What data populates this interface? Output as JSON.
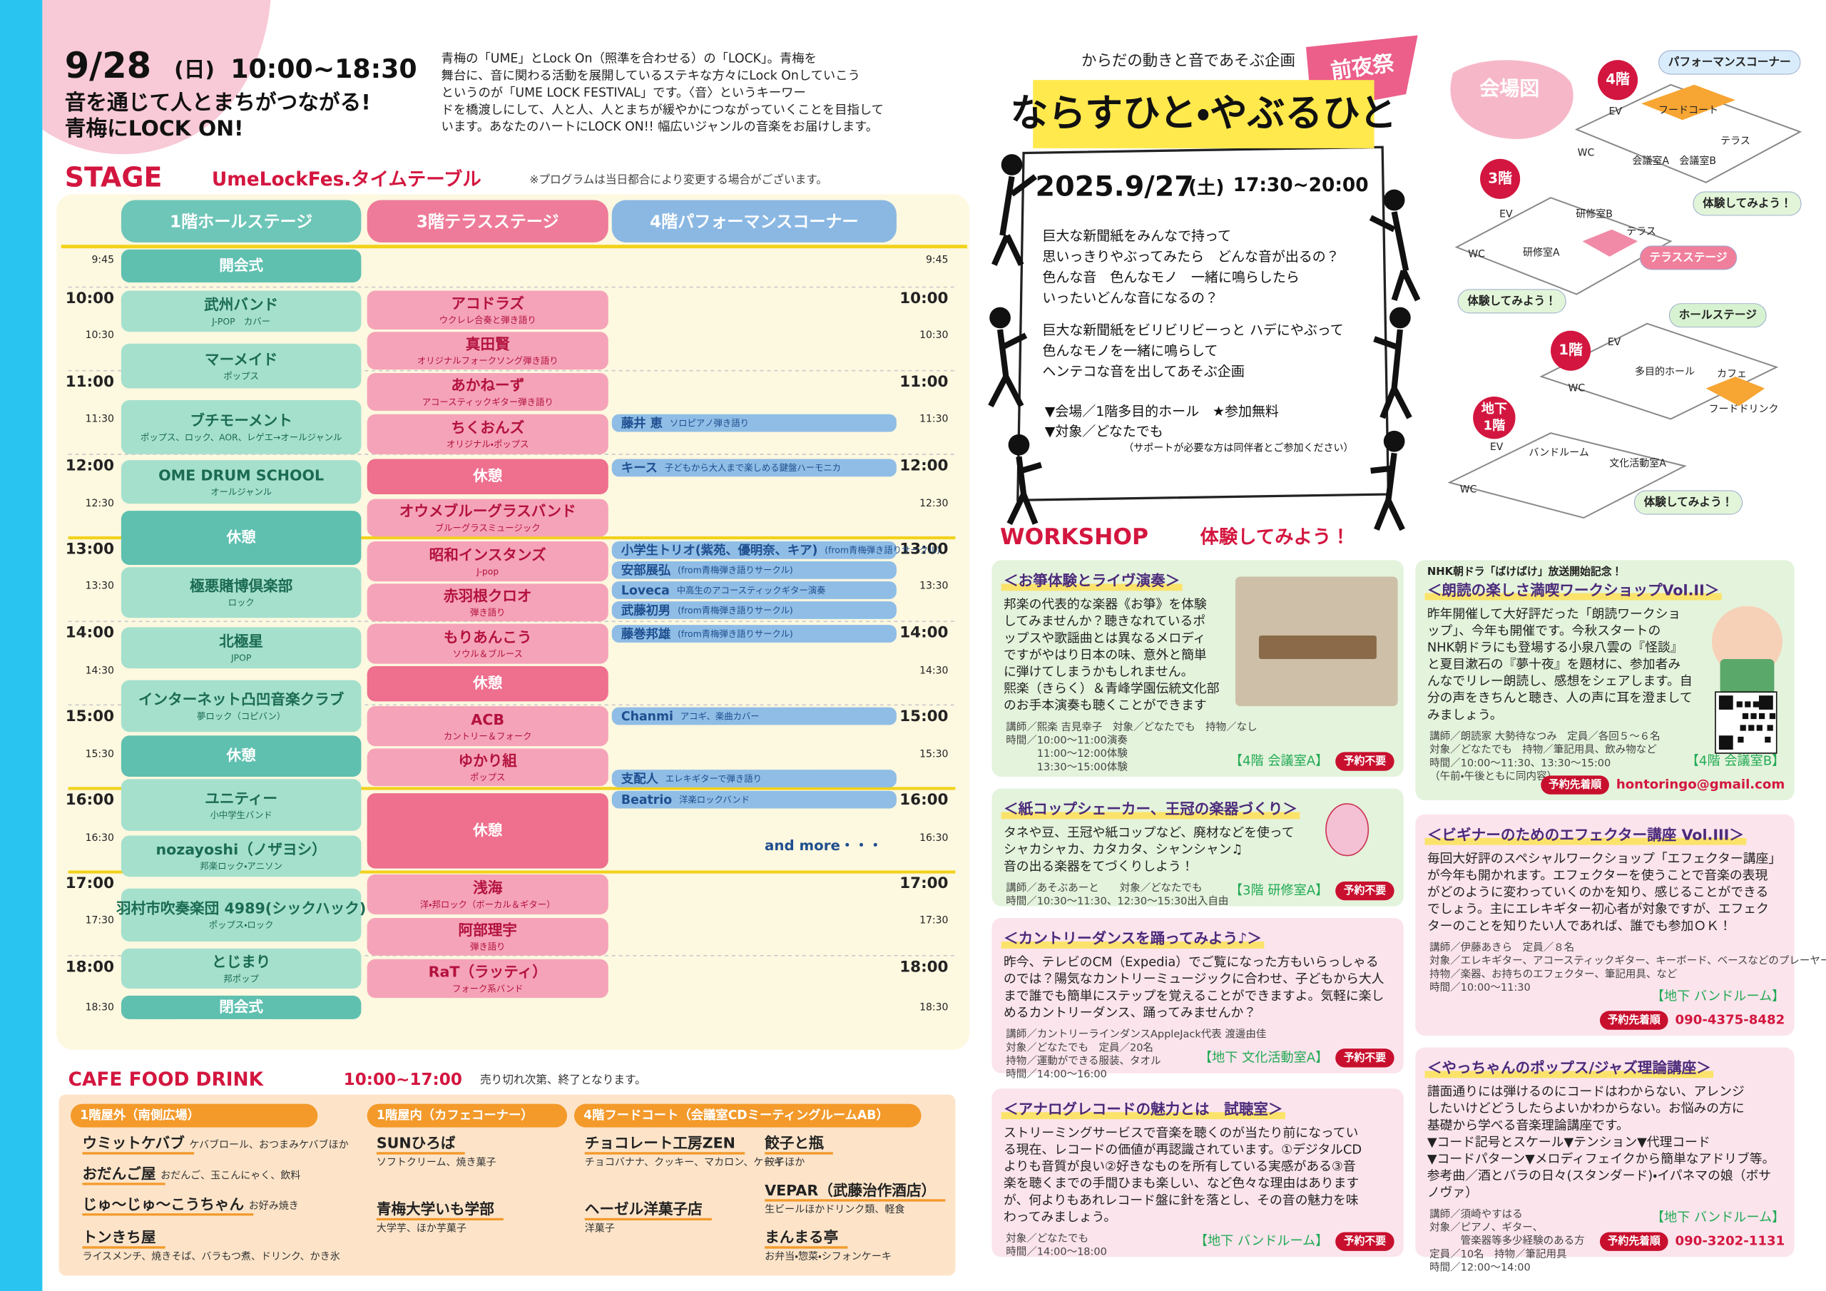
{
  "header": {
    "date": "9/28",
    "day": "(日)",
    "time": "10:00~18:30",
    "tagline": [
      "音を通じて人とまちがつながる!",
      "青梅にLOCK ON!"
    ],
    "intro": [
      "青梅の「UME」とLock On（照準を合わせる）の「LOCK」。青梅を",
      "舞台に、音に関わる活動を展開しているステキな方々にLock Onしていこう",
      "というのが「UME LOCK FESTIVAL」です。〈音〉というキーワー",
      "ドを橋渡しにして、人と人、人とまちが緩やかにつながっていくことを目指して",
      "います。あなたのハートにLOCK ON!! 幅広いジャンルの音楽をお届けします。"
    ]
  },
  "stage": {
    "title": "STAGE",
    "subtitle": "UmeLockFes.タイムテーブル",
    "note": "※プログラムは当日都合により変更する場合がございます。",
    "columns": [
      "1階ホールステージ",
      "3階テラスステージ",
      "4階パフォーマンスコーナー"
    ],
    "times": [
      "9:45",
      "10:00",
      "10:30",
      "11:00",
      "11:30",
      "12:00",
      "12:30",
      "13:00",
      "13:30",
      "14:00",
      "14:30",
      "15:00",
      "15:30",
      "16:00",
      "16:30",
      "17:00",
      "17:30",
      "18:00",
      "18:30"
    ],
    "hall": [
      {
        "name": "開会式"
      },
      {
        "name": "武州バンド",
        "sub": "J-POP　カバー"
      },
      {
        "name": "マーメイド",
        "sub": "ポップス"
      },
      {
        "name": "ブチモーメント",
        "sub": "ポップス、ロック、AOR、レゲエ→オールジャンル"
      },
      {
        "name": "OME DRUM SCHOOL",
        "sub": "オールジャンル"
      },
      {
        "name": "休憩"
      },
      {
        "name": "極悪賭博倶楽部",
        "sub": "ロック"
      },
      {
        "name": "北極星",
        "sub": "JPOP"
      },
      {
        "name": "インターネット凸凹音楽クラブ",
        "sub": "夢ロック（コピバン）"
      },
      {
        "name": "休憩"
      },
      {
        "name": "ユニティー",
        "sub": "小中学生バンド"
      },
      {
        "name": "nozayoshi（ノザヨシ）",
        "sub": "邦楽ロック・アニソン"
      },
      {
        "name": "羽村市吹奏楽団 4989(シックハック)",
        "sub": "ポップス・ロック"
      },
      {
        "name": "とじまり",
        "sub": "邦ポップ"
      },
      {
        "name": "閉会式"
      }
    ],
    "terrace": [
      {
        "name": "アコドラズ",
        "sub": "ウクレレ合奏と弾き語り"
      },
      {
        "name": "真田賢",
        "sub": "オリジナルフォークソング弾き語り"
      },
      {
        "name": "あかねーず",
        "sub": "アコースティックギター弾き語り"
      },
      {
        "name": "ちくおんズ",
        "sub": "オリジナル・ポップス"
      },
      {
        "name": "休憩"
      },
      {
        "name": "オウメブルーグラスバンド",
        "sub": "ブルーグラスミュージック"
      },
      {
        "name": "昭和インスタンズ",
        "sub": "J-pop"
      },
      {
        "name": "赤羽根クロオ",
        "sub": "弾き語り"
      },
      {
        "name": "もりあんこう",
        "sub": "ソウル＆ブルース"
      },
      {
        "name": "休憩"
      },
      {
        "name": "ACB",
        "sub": "カントリー＆フォーク"
      },
      {
        "name": "ゆかり組",
        "sub": "ポップス"
      },
      {
        "name": "休憩"
      },
      {
        "name": "浅海",
        "sub": "洋・邦ロック（ボーカル＆ギター）"
      },
      {
        "name": "阿部理宇",
        "sub": "弾き語り"
      },
      {
        "name": "RaT（ラッティ）",
        "sub": "フォーク系バンド"
      }
    ],
    "corner": [
      {
        "name": "藤井 恵",
        "sub": "ソロピアノ弾き語り"
      },
      {
        "name": "キース",
        "sub": "子どもから大人まで楽しめる鍵盤ハーモニカ"
      },
      {
        "name": "小学生トリオ(紫苑、優明奈、キア)",
        "sub": "(from青梅弾き語りサークル)"
      },
      {
        "name": "安部展弘",
        "sub": "(from青梅弾き語りサークル)"
      },
      {
        "name": "Loveca",
        "sub": "中高生のアコースティックギター演奏"
      },
      {
        "name": "武藤初男",
        "sub": "(from青梅弾き語りサークル)"
      },
      {
        "name": "藤巻邦雄",
        "sub": "(from青梅弾き語りサークル)"
      },
      {
        "name": "Chanmi",
        "sub": "アコギ、楽曲カバー"
      },
      {
        "name": "支配人",
        "sub": "エレキギターで弾き語り"
      },
      {
        "name": "Beatrio",
        "sub": "洋楽ロックバンド"
      }
    ],
    "more": "and more・・・"
  },
  "cafe": {
    "title": "CAFE FOOD DRINK",
    "time": "10:00~17:00",
    "note": "売り切れ次第、終了となります。",
    "groups": [
      {
        "name": "1階屋外（南側広場）",
        "items": [
          {
            "name": "ウミットケバブ",
            "sub": "ケバブロール、おつまみケバブほか"
          },
          {
            "name": "おだんご屋",
            "sub": "おだんご、玉こんにゃく、飲料"
          },
          {
            "name": "じゅ〜じゅ〜こうちゃん",
            "sub": "お好み焼き"
          },
          {
            "name": "トンきち屋",
            "sub": "ライスメンチ、焼きそば、バラもつ煮、ドリンク、かき氷"
          }
        ]
      },
      {
        "name": "1階屋内（カフェコーナー）",
        "items": [
          {
            "name": "SUNひろば",
            "sub": "ソフトクリーム、焼き菓子"
          },
          {
            "name": "青梅大学いも学部",
            "sub": "大学芋、ほか芋菓子"
          }
        ]
      },
      {
        "name": "4階フードコート（会議室CDミーティングルームAB）",
        "items": [
          {
            "name": "チョコレート工房ZEN",
            "sub": "チョコバナナ、クッキー、マカロン、ケーキ"
          },
          {
            "name": "ヘーゼル洋菓子店",
            "sub": "洋菓子"
          },
          {
            "name": "餃子と瓶",
            "sub": "餃子ほか"
          },
          {
            "name": "VEPAR（武藤治作酒店）",
            "sub": "生ビールほかドリンク類、軽食"
          },
          {
            "name": "まんまる亭",
            "sub": "お弁当・惣菜・シフォンケーキ"
          }
        ]
      }
    ]
  },
  "pre_event": {
    "lead": "からだの動きと音であそぶ企画",
    "badge": "前夜祭",
    "title": "ならすひと・やぶるひと",
    "date": "2025.9/27",
    "day": "(土)",
    "time": "17:30~20:00",
    "body": [
      "巨大な新聞紙をみんなで持って",
      "思いっきりやぶってみたら　どんな音が出るの？",
      "色んな音　色んなモノ　一緒に鳴らしたら",
      "いったいどんな音になるの？",
      "巨大な新聞紙をビリビリビーっと ハデにやぶって",
      "色んなモノを一緒に鳴らして",
      "ヘンテコな音を出してあそぶ企画"
    ],
    "info": [
      "▼会場／1階多目的ホール　★参加無料",
      "▼対象／どなたでも"
    ],
    "info_note": "（サポートが必要な方は同伴者とご参加ください）"
  },
  "map": {
    "title": "会場図",
    "floors": [
      "4階",
      "3階",
      "1階"
    ],
    "basement": [
      "地下",
      "1階"
    ],
    "labels": [
      "パフォーマンスコーナー",
      "フードコート",
      "テラス",
      "EV",
      "WC",
      "会議室A",
      "会議室B",
      "体験してみよう！",
      "研修室B",
      "テラス",
      "EV",
      "WC",
      "研修室A",
      "テラスステージ",
      "体験してみよう！",
      "ホールステージ",
      "EV",
      "多目的ホール",
      "カフェ",
      "フードドリンク",
      "WC",
      "EV",
      "バンドルーム",
      "文化活動室A",
      "WC",
      "体験してみよう！"
    ]
  },
  "workshop": {
    "title": "WORKSHOP",
    "subtitle": "体験してみよう！",
    "cards": [
      {
        "title": "＜お箏体験とライヴ演奏＞",
        "body": [
          "邦楽の代表的な楽器《お箏》を体験",
          "してみませんか？聴きなれているポ",
          "ップスや歌謡曲とは異なるメロディ",
          "ですがやはり日本の味、意外と簡単",
          "に弾けてしまうかもしれません。",
          "熙楽（きらく）＆青峰学園伝統文化部",
          "のお手本演奏も聴くことができます"
        ],
        "details": [
          "講師／熙楽 吉見幸子　対象／どなたでも　持物／なし",
          "時間／10:00〜11:00演奏",
          "　　　11:00〜12:00体験",
          "　　　13:30〜15:00体験"
        ],
        "place": "【4階 会議室A】",
        "badge": "予約不要"
      },
      {
        "lead": "NHK朝ドラ「ばけばけ」放送開始記念！",
        "title": "＜朗読の楽しさ満喫ワークショップVol.II＞",
        "body": [
          "昨年開催して大好評だった「朗読ワークショ",
          "ップ」、今年も開催です。今秋スタートの",
          "NHK朝ドラにも登場する小泉八雲の『怪談』",
          "と夏目漱石の『夢十夜』を題材に、参加者み",
          "んなでリレー朗読し、感想をシェアします。自",
          "分の声をきちんと聴き、人の声に耳を澄まして",
          "みましょう。"
        ],
        "details": [
          "講師／朗読家 大勢待なつみ　定員／各回５〜６名",
          "対象／どなたでも　持物／筆記用具、飲み物など",
          "時間／10:00〜11:30、13:30〜15:00",
          "（午前・午後ともに同内容）"
        ],
        "place": "【4階 会議室B】",
        "badge": "予約先着順",
        "contact": "hontoringo@gmail.com"
      },
      {
        "title": "＜紙コップシェーカー、王冠の楽器づくり＞",
        "body": [
          "タネや豆、王冠や紙コップなど、廃材などを使って",
          "シャカシャカ、カタカタ、シャンシャン♫",
          "音の出る楽器をてづくりしよう！"
        ],
        "details": [
          "講師／あそぶあーと　　対象／どなたでも",
          "時間／10:30〜11:30、12:30〜15:30出入自由"
        ],
        "place": "【3階 研修室A】",
        "badge": "予約不要"
      },
      {
        "title": "＜ビギナーのためのエフェクター講座 Vol.III＞",
        "body": [
          "毎回大好評のスペシャルワークショップ「エフェクター講座」",
          "が今年も開かれます。エフェクターを使うことで音楽の表現",
          "がどのように変わっていくのかを知り、感じることができる",
          "でしょう。主にエレキギター初心者が対象ですが、エフェク",
          "ターのことを知りたい人であれば、誰でも参加ＯＫ！"
        ],
        "details": [
          "講師／伊藤あきら　定員／８名",
          "対象／エレキギター、アコースティックギター、キーボード、ベースなどのプレーヤー",
          "持物／楽器、お持ちのエフェクター、筆記用具、など",
          "時間／10:00〜11:30"
        ],
        "place": "【地下 バンドルーム】",
        "badge": "予約先着順",
        "contact": "090-4375-8482"
      },
      {
        "title": "＜カントリーダンスを踊ってみよう♪＞",
        "body": [
          "昨今、テレビのCM（Expedia）でご覧になった方もいらっしゃる",
          "のでは？陽気なカントリーミュージックに合わせ、子どもから大人",
          "まで誰でも簡単にステップを覚えることができますよ。気軽に楽し",
          "めるカントリーダンス、踊ってみませんか？"
        ],
        "details": [
          "講師／カントリーラインダンスAppleJack代表 渡邊由佳",
          "対象／どなたでも　定員／20名",
          "持物／運動ができる服装、タオル",
          "時間／14:00〜16:00"
        ],
        "place": "【地下 文化活動室A】",
        "badge": "予約不要"
      },
      {
        "title": "＜やっちゃんのポップス/ジャズ理論講座＞",
        "body": [
          "譜面通りには弾けるのにコードはわからない、アレンジ",
          "したいけどどうしたらよいかわからない。お悩みの方に",
          "基礎から学べる音楽理論講座です。",
          "▼コード記号とスケール▼テンション▼代理コード",
          "▼コードパターン▼メロディフェイクから簡単なアドリブ等。",
          "参考曲／酒とバラの日々(スタンダード)・イパネマの娘（ボサ",
          "ノヴァ）"
        ],
        "details": [
          "講師／須崎やすはる",
          "対象／ピアノ、ギター、",
          "　　　管楽器等多少経験のある方",
          "定員／10名　持物／筆記用具",
          "時間／12:00〜14:00"
        ],
        "place": "【地下 バンドルーム】",
        "badge": "予約先着順",
        "contact": "090-3202-1131"
      },
      {
        "title": "＜アナログレコードの魅力とは　試聴室＞",
        "body": [
          "ストリーミングサービスで音楽を聴くのが当たり前になってい",
          "る現在、レコードの価値が再認識されています。①デジタルCD",
          "よりも音質が良い②好きなものを所有している実感がある③音",
          "楽を聴くまでの手間ひまも楽しい、など色々な理由はあります",
          "が、何よりもあれレコード盤に針を落とし、その音の魅力を味",
          "わってみましょう。"
        ],
        "details": [
          "対象／どなたでも",
          "時間／14:00〜18:00"
        ],
        "place": "【地下 バンドルーム】",
        "badge": "予約不要"
      }
    ]
  }
}
